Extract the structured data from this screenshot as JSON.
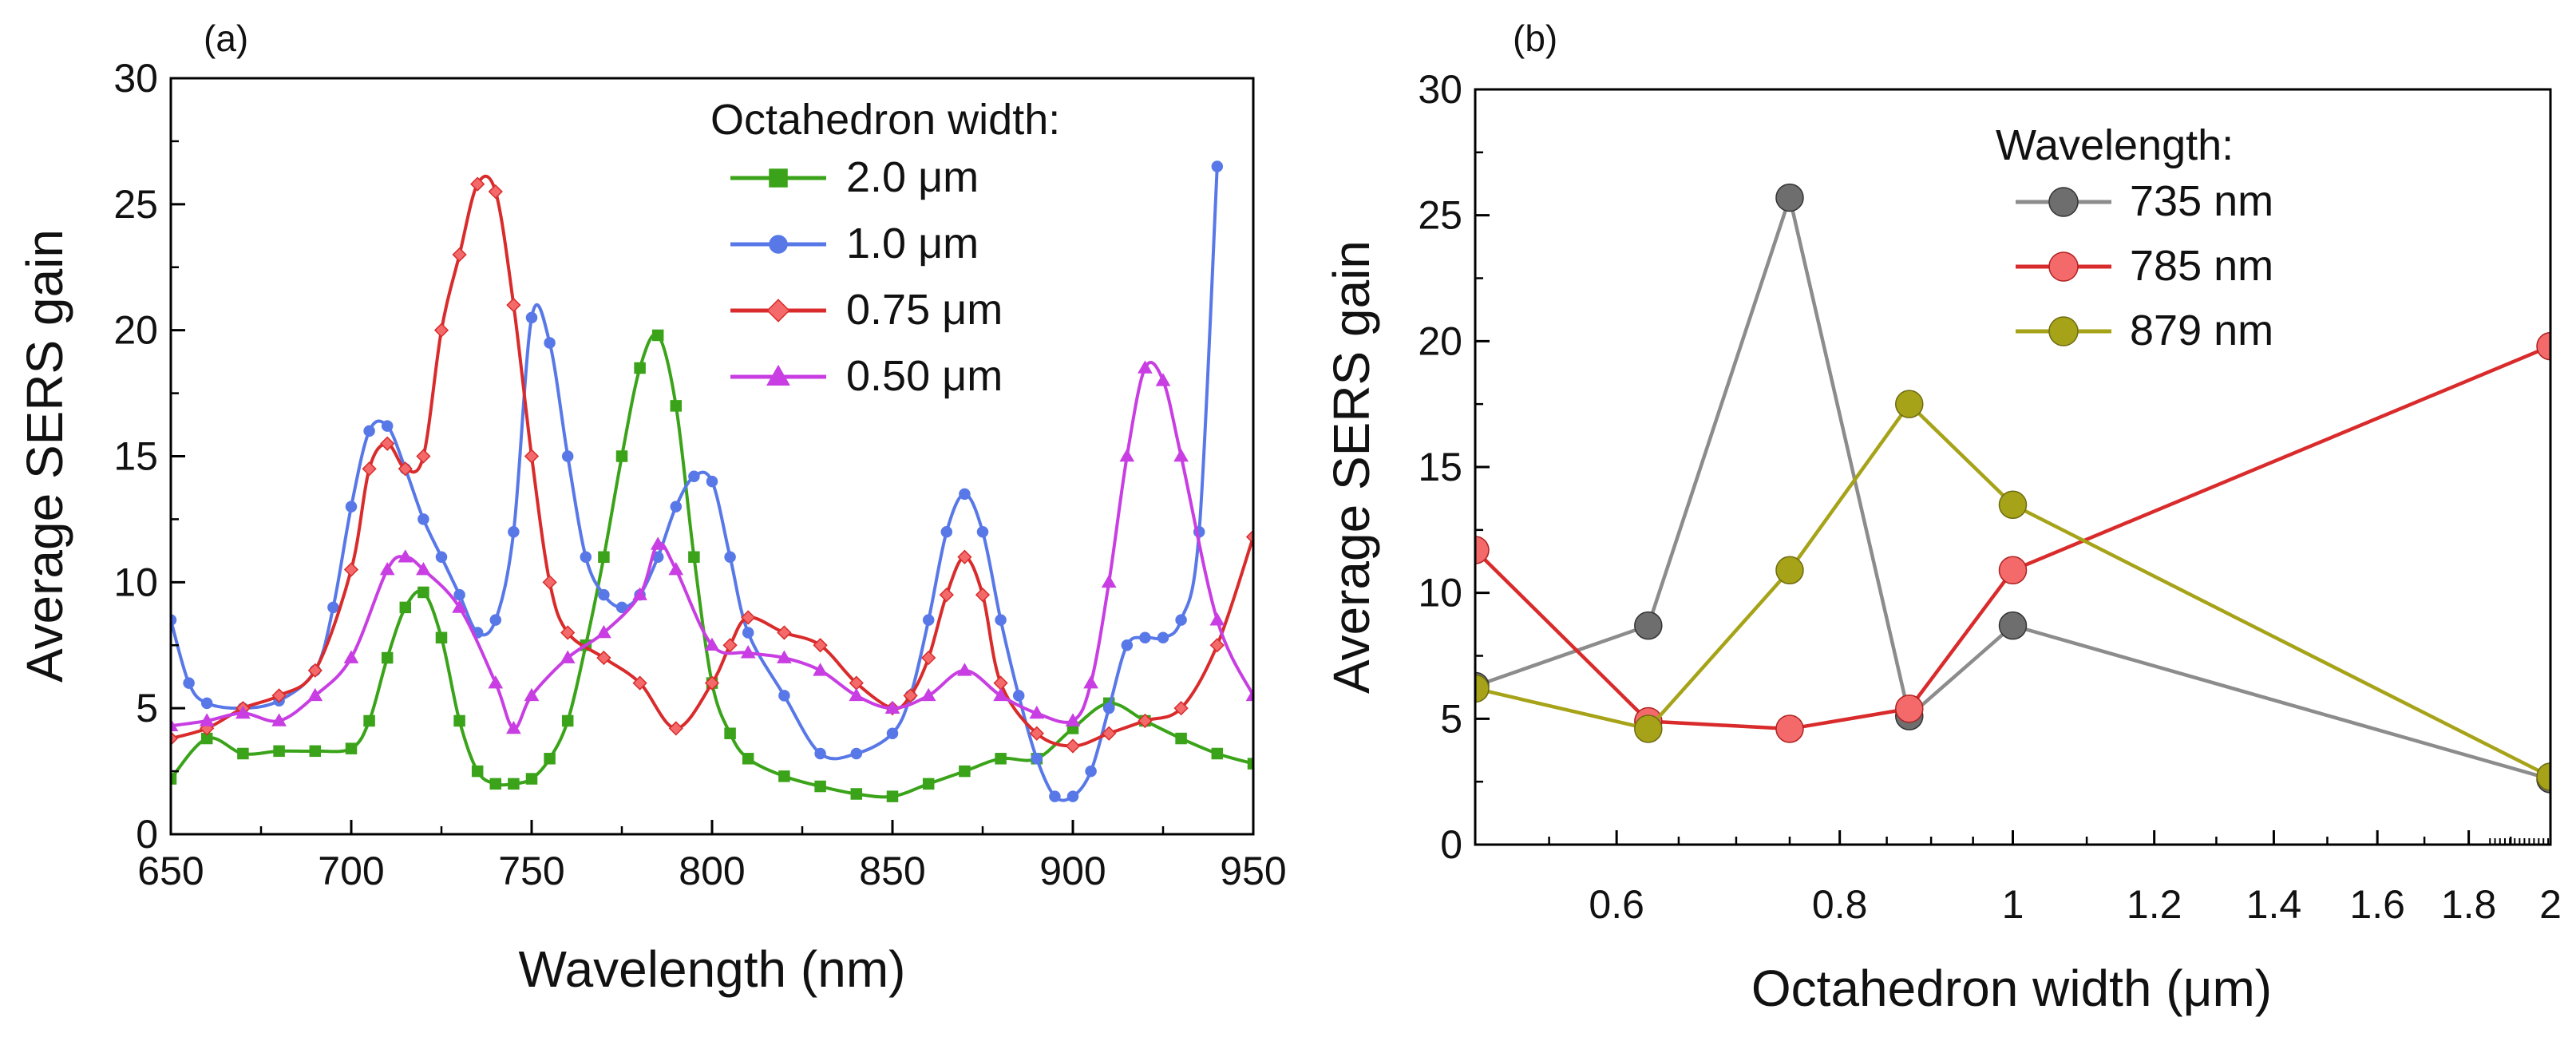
{
  "chart_data": [
    {
      "type": "line",
      "panel_label": "(a)",
      "xlabel": "Wavelength (nm)",
      "ylabel": "Average SERS gain",
      "xlim": [
        650,
        950
      ],
      "ylim": [
        0,
        30
      ],
      "xticks": [
        650,
        700,
        750,
        800,
        850,
        900,
        950
      ],
      "xtick_labels": [
        "650",
        "700",
        "750",
        "800",
        "850",
        "900",
        "950"
      ],
      "yticks": [
        0,
        5,
        10,
        15,
        20,
        25,
        30
      ],
      "ytick_labels": [
        "0",
        "5",
        "10",
        "15",
        "20",
        "25",
        "30"
      ],
      "legend_title": "Octahedron width:",
      "legend_position": "top-right",
      "series": [
        {
          "name": "2.0 μm",
          "marker": "square",
          "color": "#3aa319",
          "x": [
            650,
            660,
            670,
            680,
            690,
            700,
            705,
            710,
            715,
            720,
            725,
            730,
            735,
            740,
            745,
            750,
            755,
            760,
            765,
            770,
            775,
            780,
            785,
            790,
            795,
            800,
            805,
            810,
            820,
            830,
            840,
            850,
            860,
            870,
            880,
            890,
            900,
            910,
            920,
            930,
            940,
            950
          ],
          "y": [
            2.2,
            3.8,
            3.2,
            3.3,
            3.3,
            3.4,
            4.5,
            7.0,
            9.0,
            9.6,
            7.8,
            4.5,
            2.5,
            2.0,
            2.0,
            2.2,
            3.0,
            4.5,
            7.5,
            11.0,
            15.0,
            18.5,
            19.8,
            17.0,
            11.0,
            6.0,
            4.0,
            3.0,
            2.3,
            1.9,
            1.6,
            1.5,
            2.0,
            2.5,
            3.0,
            3.0,
            4.2,
            5.2,
            4.5,
            3.8,
            3.2,
            2.8
          ]
        },
        {
          "name": "1.0 μm",
          "marker": "circle",
          "color": "#5878e8",
          "x": [
            650,
            655,
            660,
            670,
            680,
            690,
            695,
            700,
            705,
            710,
            715,
            720,
            725,
            730,
            735,
            740,
            745,
            750,
            755,
            760,
            765,
            770,
            775,
            780,
            785,
            790,
            795,
            800,
            805,
            810,
            820,
            830,
            840,
            850,
            855,
            860,
            865,
            870,
            875,
            880,
            885,
            890,
            895,
            900,
            905,
            910,
            915,
            920,
            925,
            930,
            935,
            940
          ],
          "y": [
            8.5,
            6.0,
            5.2,
            5.0,
            5.3,
            6.5,
            9.0,
            13.0,
            16.0,
            16.2,
            14.5,
            12.5,
            11.0,
            9.5,
            8.0,
            8.5,
            12.0,
            20.5,
            19.5,
            15.0,
            11.0,
            9.5,
            9.0,
            9.5,
            11.0,
            13.0,
            14.2,
            14.0,
            11.0,
            8.0,
            5.5,
            3.2,
            3.2,
            4.0,
            5.5,
            8.5,
            12.0,
            13.5,
            12.0,
            8.5,
            5.5,
            3.0,
            1.5,
            1.5,
            2.5,
            5.0,
            7.5,
            7.8,
            7.8,
            8.5,
            12.0,
            26.5
          ]
        },
        {
          "name": "0.75 μm",
          "marker": "diamond",
          "color": "#d92b2b",
          "fill": "#f46a6a",
          "x": [
            650,
            660,
            670,
            680,
            690,
            700,
            705,
            710,
            715,
            720,
            725,
            730,
            735,
            740,
            745,
            750,
            755,
            760,
            770,
            780,
            790,
            800,
            805,
            810,
            820,
            830,
            840,
            850,
            855,
            860,
            865,
            870,
            875,
            880,
            890,
            900,
            910,
            920,
            930,
            940,
            950
          ],
          "y": [
            3.8,
            4.2,
            5.0,
            5.5,
            6.5,
            10.5,
            14.5,
            15.5,
            14.5,
            15.0,
            20.0,
            23.0,
            25.8,
            25.5,
            21.0,
            15.0,
            10.0,
            8.0,
            7.0,
            6.0,
            4.2,
            6.0,
            7.5,
            8.6,
            8.0,
            7.5,
            6.0,
            5.0,
            5.5,
            7.0,
            9.5,
            11.0,
            9.5,
            6.0,
            4.0,
            3.5,
            4.0,
            4.5,
            5.0,
            7.5,
            11.8
          ]
        },
        {
          "name": "0.50 μm",
          "marker": "triangle",
          "color": "#c83ee2",
          "x": [
            650,
            660,
            670,
            680,
            690,
            700,
            710,
            715,
            720,
            730,
            740,
            745,
            750,
            760,
            770,
            780,
            785,
            790,
            800,
            810,
            820,
            830,
            840,
            850,
            860,
            870,
            880,
            890,
            900,
            905,
            910,
            915,
            920,
            925,
            930,
            940,
            950
          ],
          "y": [
            4.3,
            4.5,
            4.8,
            4.5,
            5.5,
            7.0,
            10.5,
            11.0,
            10.5,
            9.0,
            6.0,
            4.2,
            5.5,
            7.0,
            8.0,
            9.5,
            11.5,
            10.5,
            7.5,
            7.2,
            7.0,
            6.5,
            5.5,
            5.0,
            5.5,
            6.5,
            5.5,
            4.8,
            4.5,
            6.0,
            10.0,
            15.0,
            18.5,
            18.0,
            15.0,
            8.5,
            5.5
          ]
        }
      ]
    },
    {
      "type": "line",
      "panel_label": "(b)",
      "xlabel": "Octahedron width (μm)",
      "ylabel": "Average SERS gain",
      "xscale": "log",
      "xlim": [
        0.5,
        2
      ],
      "ylim": [
        0,
        30
      ],
      "xticks": [
        0.6,
        0.8,
        1,
        1.2,
        1.4,
        1.6,
        1.8,
        2
      ],
      "xtick_labels": [
        "0.6",
        "0.8",
        "1",
        "1.2",
        "1.4",
        "1.6",
        "1.8",
        "2"
      ],
      "yticks": [
        0,
        5,
        10,
        15,
        20,
        25,
        30
      ],
      "ytick_labels": [
        "0",
        "5",
        "10",
        "15",
        "20",
        "25",
        "30"
      ],
      "legend_title": "Wavelength:",
      "legend_position": "top-right",
      "series": [
        {
          "name": "735 nm",
          "marker": "circle",
          "color": "#8c8c8c",
          "fill": "#6e6e6e",
          "x": [
            0.5,
            0.625,
            0.75,
            0.875,
            1.0,
            2.0
          ],
          "y": [
            6.3,
            8.7,
            25.7,
            5.1,
            8.7,
            2.6
          ]
        },
        {
          "name": "785 nm",
          "marker": "circle",
          "color": "#d92b2b",
          "fill": "#f46a6a",
          "x": [
            0.5,
            0.625,
            0.75,
            0.875,
            1.0,
            2.0
          ],
          "y": [
            11.7,
            4.9,
            4.6,
            5.4,
            10.9,
            19.8
          ]
        },
        {
          "name": "879 nm",
          "marker": "circle",
          "color": "#a6a319",
          "fill": "#a6a319",
          "x": [
            0.5,
            0.625,
            0.75,
            0.875,
            1.0,
            2.0
          ],
          "y": [
            6.2,
            4.6,
            10.9,
            17.5,
            13.5,
            2.7
          ]
        }
      ]
    }
  ]
}
